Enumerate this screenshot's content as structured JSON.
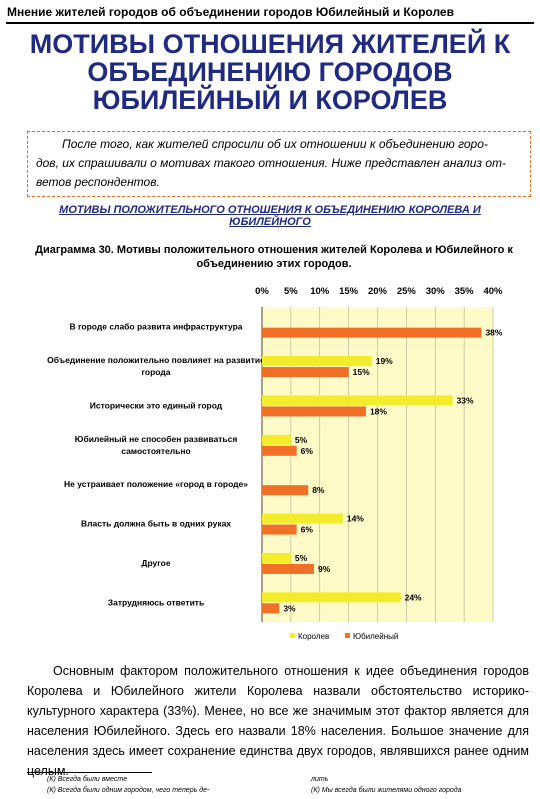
{
  "header": {
    "text": "Мнение жителей городов об объединении городов Юбилейный и Королев"
  },
  "title": {
    "line1": "МОТИВЫ ОТНОШЕНИЯ ЖИТЕЛЕЙ К",
    "line2": "ОБЪЕДИНЕНИЮ ГОРОДОВ",
    "line3": "ЮБИЛЕЙНЫЙ И КОРОЛЕВ"
  },
  "intro": {
    "line1": "После того, как жителей спросили об их отношении к объединению горо-",
    "line2": "дов, их спрашивали о мотивах такого отношения. Ниже представлен анализ от-",
    "line3": "ветов респондентов."
  },
  "section": {
    "line1": "МОТИВЫ ПОЛОЖИТЕЛЬНОГО ОТНОШЕНИЯ К ОБЪЕДИНЕНИЮ КОРОЛЕВА И",
    "line2": "ЮБИЛЕЙНОГО"
  },
  "diagram": {
    "caption_line1": "Диаграмма 30. Мотивы положительного отношения жителей Королева и Юбилейного к",
    "caption_line2": "объединению этих городов."
  },
  "chart_data": {
    "type": "bar",
    "orientation": "horizontal",
    "x_ticks": [
      "0%",
      "5%",
      "10%",
      "15%",
      "20%",
      "25%",
      "30%",
      "35%",
      "40%"
    ],
    "xlim": [
      0,
      40
    ],
    "categories": [
      [
        "В городе слабо развита инфраструктура"
      ],
      [
        "Объединение положительно повлияет на развитие",
        "города"
      ],
      [
        "Исторически это единый город"
      ],
      [
        "Юбилейный не способен развиваться",
        "самостоятельно"
      ],
      [
        "Не устраивает положение «город в городе»"
      ],
      [
        "Власть должна быть в одних руках"
      ],
      [
        "Другое"
      ],
      [
        "Затрудняюсь ответить"
      ]
    ],
    "series": [
      {
        "name": "Королев",
        "color": "#f3ec2a",
        "values": [
          null,
          19,
          33,
          5,
          null,
          14,
          5,
          24
        ]
      },
      {
        "name": "Юбилейный",
        "color": "#f07028",
        "values": [
          38,
          15,
          18,
          6,
          8,
          6,
          9,
          3
        ]
      }
    ],
    "legend_position": "bottom",
    "plot_background": "#fffbc8",
    "grid": true
  },
  "body": {
    "text": "Основным фактором положительного отношения к идее объединения городов Королева и Юбилейного жители Королева назвали обстоятельство историко-культурного характера (33%). Менее, но все же значимым этот фактор является для населения Юбилейного. Здесь его назвали 18% населения. Большое значение для населения здесь имеет сохранение единства двух городов, являвшихся ранее одним целым."
  },
  "footnotes": {
    "left1": "(К) Всегда были вместе",
    "left2": "(К) Всегда были одним городом, чего теперь де-",
    "right1": "лить",
    "right2": "(К) Мы всегда были жителями одного города"
  }
}
